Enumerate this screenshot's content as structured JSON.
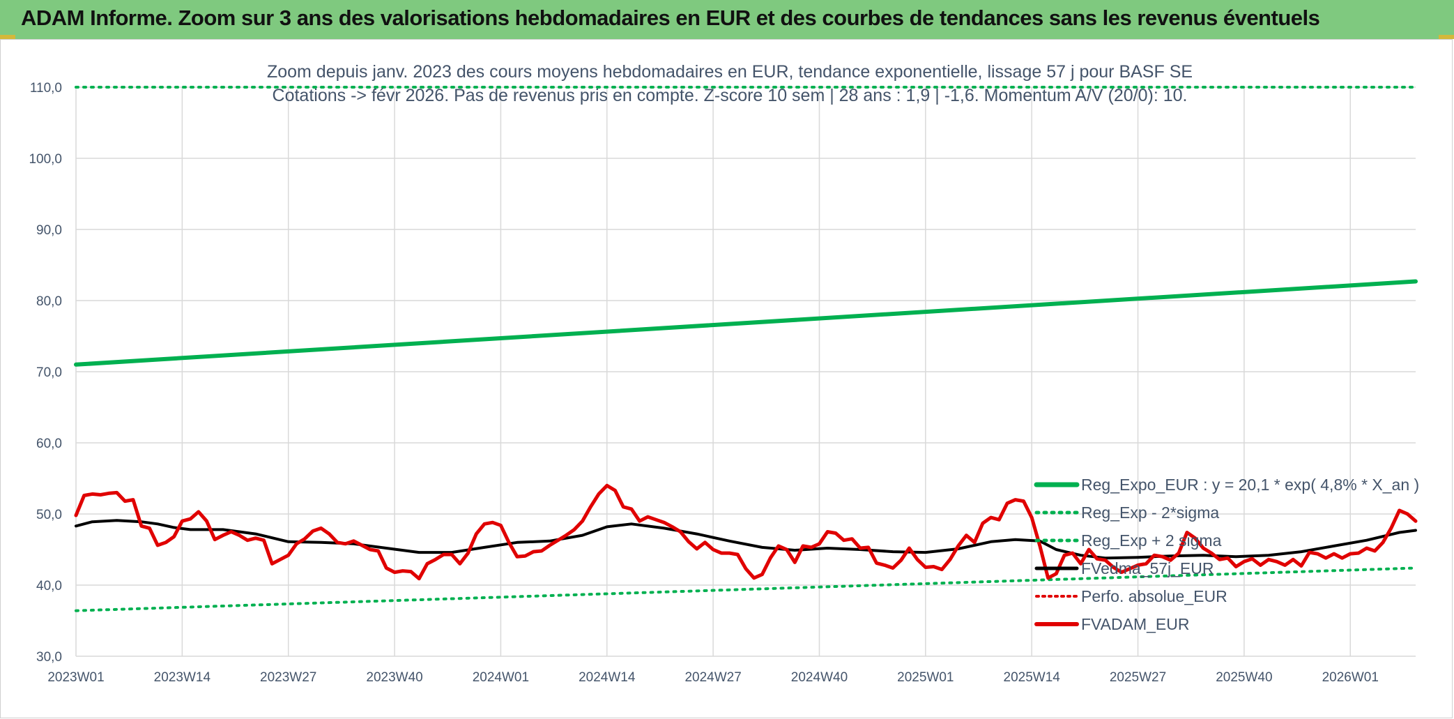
{
  "header": {
    "title": "ADAM Informe. Zoom sur 3 ans des valorisations hebdomadaires en EUR et des courbes de tendances sans les revenus éventuels"
  },
  "colors": {
    "header_bg": "#7fc97f",
    "reg_expo": "#00b050",
    "sigma": "#00b050",
    "fvedma": "#000000",
    "perfo": "#e00000",
    "fvadam": "#e00000",
    "text": "#44546a",
    "grid": "#d9d9d9"
  },
  "chart_data": {
    "type": "line",
    "title_line1": "Zoom depuis janv. 2023 des cours moyens hebdomadaires en EUR, tendance exponentielle, lissage 57 j pour BASF SE",
    "title_line2": "Cotations -> févr 2026. Pas de revenus pris en compte. Z-score 10 sem | 28 ans : 1,9 | -1,6. Momentum A/V (20/0): 10.",
    "ylim": [
      30,
      110
    ],
    "y_ticks": [
      "30,0",
      "40,0",
      "50,0",
      "60,0",
      "70,0",
      "80,0",
      "90,0",
      "100,0",
      "110,0"
    ],
    "x_tick_labels": [
      "2023W01",
      "2023W14",
      "2023W27",
      "2023W40",
      "2024W01",
      "2024W14",
      "2024W27",
      "2024W40",
      "2025W01",
      "2025W14",
      "2025W27",
      "2025W40",
      "2026W01"
    ],
    "x_tick_weeks": [
      0,
      13,
      26,
      39,
      52,
      65,
      78,
      91,
      104,
      117,
      130,
      143,
      156
    ],
    "x_range": [
      0,
      164
    ],
    "grid": true,
    "legend_position": "bottom-right",
    "series": [
      {
        "name": "Reg_Expo_EUR : y = 20,1 * exp( 4,8% *  X_an )",
        "style": "solid-thick",
        "points": [
          [
            0,
            71.0
          ],
          [
            164,
            82.7
          ]
        ]
      },
      {
        "name": "Reg_Exp - 2*sigma",
        "style": "dotted",
        "points": [
          [
            0,
            36.4
          ],
          [
            164,
            42.4
          ]
        ]
      },
      {
        "name": "Reg_Exp + 2 sigma",
        "style": "dotted",
        "points": [
          [
            0,
            110.0
          ],
          [
            164,
            110.0
          ]
        ]
      },
      {
        "name": "FVedma_57j_EUR",
        "style": "solid",
        "points": [
          [
            0,
            48.3
          ],
          [
            2,
            48.9
          ],
          [
            5,
            49.1
          ],
          [
            8,
            48.9
          ],
          [
            10,
            48.6
          ],
          [
            12,
            48.1
          ],
          [
            14,
            47.8
          ],
          [
            18,
            47.8
          ],
          [
            22,
            47.2
          ],
          [
            26,
            46.1
          ],
          [
            30,
            46.0
          ],
          [
            34,
            45.8
          ],
          [
            38,
            45.2
          ],
          [
            42,
            44.6
          ],
          [
            46,
            44.6
          ],
          [
            50,
            45.3
          ],
          [
            54,
            46.0
          ],
          [
            58,
            46.2
          ],
          [
            62,
            47.0
          ],
          [
            65,
            48.2
          ],
          [
            68,
            48.6
          ],
          [
            72,
            48.0
          ],
          [
            76,
            47.2
          ],
          [
            80,
            46.2
          ],
          [
            84,
            45.3
          ],
          [
            88,
            44.9
          ],
          [
            92,
            45.2
          ],
          [
            96,
            45.0
          ],
          [
            100,
            44.7
          ],
          [
            104,
            44.6
          ],
          [
            108,
            45.1
          ],
          [
            112,
            46.1
          ],
          [
            115,
            46.4
          ],
          [
            118,
            46.2
          ],
          [
            120,
            45.0
          ],
          [
            123,
            44.2
          ],
          [
            126,
            43.8
          ],
          [
            130,
            43.9
          ],
          [
            134,
            44.1
          ],
          [
            138,
            44.2
          ],
          [
            142,
            44.0
          ],
          [
            146,
            44.2
          ],
          [
            150,
            44.7
          ],
          [
            154,
            45.5
          ],
          [
            158,
            46.3
          ],
          [
            162,
            47.4
          ],
          [
            164,
            47.7
          ]
        ]
      },
      {
        "name": "Perfo. absolue_EUR",
        "style": "dotted",
        "points": []
      },
      {
        "name": "FVADAM_EUR",
        "style": "solid-thick",
        "points": [
          [
            0,
            49.8
          ],
          [
            1,
            52.6
          ],
          [
            2,
            52.8
          ],
          [
            3,
            52.7
          ],
          [
            4,
            52.9
          ],
          [
            5,
            53.0
          ],
          [
            6,
            51.8
          ],
          [
            7,
            52.0
          ],
          [
            8,
            48.3
          ],
          [
            9,
            48.0
          ],
          [
            10,
            45.6
          ],
          [
            11,
            46.0
          ],
          [
            12,
            46.8
          ],
          [
            13,
            49.0
          ],
          [
            14,
            49.3
          ],
          [
            15,
            50.3
          ],
          [
            16,
            49.0
          ],
          [
            17,
            46.4
          ],
          [
            18,
            47.0
          ],
          [
            19,
            47.5
          ],
          [
            20,
            47.0
          ],
          [
            21,
            46.3
          ],
          [
            22,
            46.6
          ],
          [
            23,
            46.3
          ],
          [
            24,
            43.0
          ],
          [
            25,
            43.6
          ],
          [
            26,
            44.2
          ],
          [
            27,
            45.8
          ],
          [
            28,
            46.5
          ],
          [
            29,
            47.6
          ],
          [
            30,
            48.0
          ],
          [
            31,
            47.2
          ],
          [
            32,
            46.0
          ],
          [
            33,
            45.8
          ],
          [
            34,
            46.2
          ],
          [
            35,
            45.6
          ],
          [
            36,
            45.0
          ],
          [
            37,
            44.8
          ],
          [
            38,
            42.4
          ],
          [
            39,
            41.8
          ],
          [
            40,
            42.0
          ],
          [
            41,
            41.9
          ],
          [
            42,
            40.9
          ],
          [
            43,
            43.0
          ],
          [
            44,
            43.6
          ],
          [
            45,
            44.3
          ],
          [
            46,
            44.3
          ],
          [
            47,
            43.0
          ],
          [
            48,
            44.5
          ],
          [
            49,
            47.2
          ],
          [
            50,
            48.6
          ],
          [
            51,
            48.8
          ],
          [
            52,
            48.4
          ],
          [
            53,
            46.0
          ],
          [
            54,
            44.0
          ],
          [
            55,
            44.1
          ],
          [
            56,
            44.7
          ],
          [
            57,
            44.8
          ],
          [
            58,
            45.6
          ],
          [
            59,
            46.3
          ],
          [
            60,
            47.0
          ],
          [
            61,
            47.8
          ],
          [
            62,
            49.0
          ],
          [
            63,
            51.0
          ],
          [
            64,
            52.8
          ],
          [
            65,
            54.0
          ],
          [
            66,
            53.3
          ],
          [
            67,
            51.0
          ],
          [
            68,
            50.7
          ],
          [
            69,
            49.0
          ],
          [
            70,
            49.6
          ],
          [
            71,
            49.2
          ],
          [
            72,
            48.8
          ],
          [
            73,
            48.2
          ],
          [
            74,
            47.5
          ],
          [
            75,
            46.1
          ],
          [
            76,
            45.1
          ],
          [
            77,
            46.0
          ],
          [
            78,
            45.0
          ],
          [
            79,
            44.5
          ],
          [
            80,
            44.5
          ],
          [
            81,
            44.3
          ],
          [
            82,
            42.3
          ],
          [
            83,
            41.0
          ],
          [
            84,
            41.5
          ],
          [
            85,
            43.8
          ],
          [
            86,
            45.5
          ],
          [
            87,
            45.0
          ],
          [
            88,
            43.2
          ],
          [
            89,
            45.5
          ],
          [
            90,
            45.3
          ],
          [
            91,
            45.8
          ],
          [
            92,
            47.5
          ],
          [
            93,
            47.3
          ],
          [
            94,
            46.3
          ],
          [
            95,
            46.5
          ],
          [
            96,
            45.2
          ],
          [
            97,
            45.3
          ],
          [
            98,
            43.1
          ],
          [
            99,
            42.8
          ],
          [
            100,
            42.4
          ],
          [
            101,
            43.5
          ],
          [
            102,
            45.2
          ],
          [
            103,
            43.6
          ],
          [
            104,
            42.5
          ],
          [
            105,
            42.6
          ],
          [
            106,
            42.2
          ],
          [
            107,
            43.6
          ],
          [
            108,
            45.5
          ],
          [
            109,
            47.0
          ],
          [
            110,
            46.0
          ],
          [
            111,
            48.7
          ],
          [
            112,
            49.5
          ],
          [
            113,
            49.2
          ],
          [
            114,
            51.5
          ],
          [
            115,
            52.0
          ],
          [
            116,
            51.8
          ],
          [
            117,
            49.5
          ],
          [
            118,
            45.5
          ],
          [
            119,
            41.0
          ],
          [
            120,
            41.6
          ],
          [
            121,
            44.2
          ],
          [
            122,
            44.5
          ],
          [
            123,
            43.0
          ],
          [
            124,
            45.0
          ],
          [
            125,
            43.7
          ],
          [
            126,
            43.5
          ],
          [
            127,
            42.5
          ],
          [
            128,
            41.8
          ],
          [
            129,
            42.3
          ],
          [
            130,
            42.8
          ],
          [
            131,
            43.0
          ],
          [
            132,
            44.2
          ],
          [
            133,
            44.0
          ],
          [
            134,
            43.5
          ],
          [
            135,
            44.5
          ],
          [
            136,
            47.4
          ],
          [
            137,
            46.6
          ],
          [
            138,
            45.2
          ],
          [
            139,
            44.5
          ],
          [
            140,
            43.6
          ],
          [
            141,
            43.8
          ],
          [
            142,
            42.6
          ],
          [
            143,
            43.3
          ],
          [
            144,
            43.7
          ],
          [
            145,
            42.8
          ],
          [
            146,
            43.6
          ],
          [
            147,
            43.3
          ],
          [
            148,
            42.8
          ],
          [
            149,
            43.6
          ],
          [
            150,
            42.7
          ],
          [
            151,
            44.6
          ],
          [
            152,
            44.4
          ],
          [
            153,
            43.8
          ],
          [
            154,
            44.4
          ],
          [
            155,
            43.8
          ],
          [
            156,
            44.4
          ],
          [
            157,
            44.5
          ],
          [
            158,
            45.2
          ],
          [
            159,
            44.8
          ],
          [
            160,
            46.0
          ],
          [
            161,
            48.0
          ],
          [
            162,
            50.5
          ],
          [
            163,
            50.0
          ],
          [
            164,
            49.0
          ]
        ]
      }
    ]
  }
}
